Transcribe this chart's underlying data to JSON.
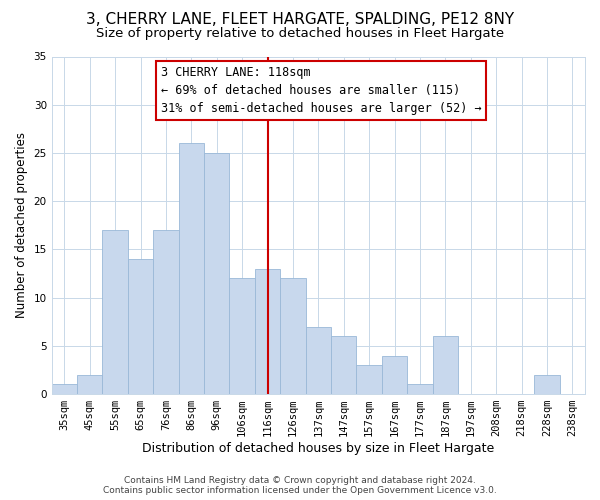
{
  "title": "3, CHERRY LANE, FLEET HARGATE, SPALDING, PE12 8NY",
  "subtitle": "Size of property relative to detached houses in Fleet Hargate",
  "xlabel": "Distribution of detached houses by size in Fleet Hargate",
  "ylabel": "Number of detached properties",
  "categories": [
    "35sqm",
    "45sqm",
    "55sqm",
    "65sqm",
    "76sqm",
    "86sqm",
    "96sqm",
    "106sqm",
    "116sqm",
    "126sqm",
    "137sqm",
    "147sqm",
    "157sqm",
    "167sqm",
    "177sqm",
    "187sqm",
    "197sqm",
    "208sqm",
    "218sqm",
    "228sqm",
    "238sqm"
  ],
  "values": [
    1,
    2,
    17,
    14,
    17,
    26,
    25,
    12,
    13,
    12,
    7,
    6,
    3,
    4,
    1,
    6,
    0,
    0,
    0,
    2,
    0
  ],
  "bar_color": "#c8d8ed",
  "bar_edge_color": "#9ab8d8",
  "vline_x_idx": 8,
  "vline_color": "#cc0000",
  "ylim": [
    0,
    35
  ],
  "yticks": [
    0,
    5,
    10,
    15,
    20,
    25,
    30,
    35
  ],
  "annotation_title": "3 CHERRY LANE: 118sqm",
  "annotation_line1": "← 69% of detached houses are smaller (115)",
  "annotation_line2": "31% of semi-detached houses are larger (52) →",
  "annotation_box_color": "#ffffff",
  "annotation_box_edge": "#cc0000",
  "footer1": "Contains HM Land Registry data © Crown copyright and database right 2024.",
  "footer2": "Contains public sector information licensed under the Open Government Licence v3.0.",
  "title_fontsize": 11,
  "subtitle_fontsize": 9.5,
  "xlabel_fontsize": 9,
  "ylabel_fontsize": 8.5,
  "tick_fontsize": 7.5,
  "annotation_fontsize": 8.5,
  "footer_fontsize": 6.5
}
